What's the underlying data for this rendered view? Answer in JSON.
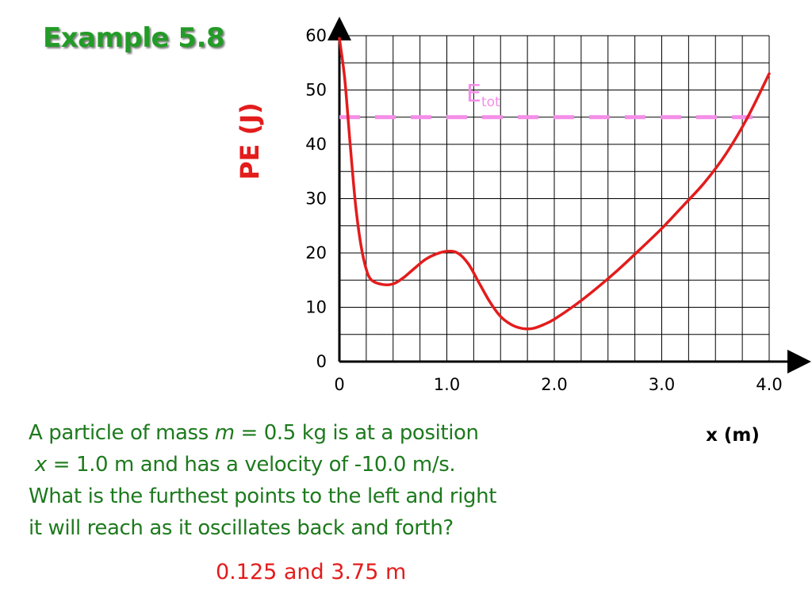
{
  "slide": {
    "title": "Example 5.8",
    "question_lines": [
      "A particle of mass m = 0.5 kg is at a position",
      " x = 1.0 m and has a velocity of -10.0 m/s.",
      "What is the furthest points to the left and right",
      "it will reach as it oscillates back and forth?"
    ],
    "answer": "0.125 and 3.75 m"
  },
  "chart_data": {
    "type": "line",
    "title": "",
    "xlabel": "x (m)",
    "ylabel": "PE (J)",
    "xlim": [
      0,
      4.0
    ],
    "ylim": [
      0,
      60
    ],
    "x_ticks": [
      "0",
      "1.0",
      "2.0",
      "3.0",
      "4.0"
    ],
    "y_ticks": [
      "0",
      "10",
      "20",
      "30",
      "40",
      "50",
      "60"
    ],
    "grid": true,
    "series": [
      {
        "color": "#e31c1c",
        "x": [
          0.0,
          0.05,
          0.1,
          0.15,
          0.2,
          0.25,
          0.3,
          0.4,
          0.5,
          0.6,
          0.7,
          0.8,
          0.9,
          1.0,
          1.1,
          1.2,
          1.3,
          1.4,
          1.5,
          1.6,
          1.7,
          1.8,
          1.9,
          2.0,
          2.2,
          2.4,
          2.6,
          2.8,
          3.0,
          3.2,
          3.4,
          3.6,
          3.8,
          4.0
        ],
        "y": [
          59.5,
          52,
          40,
          29,
          21.5,
          17,
          15,
          14.2,
          14.3,
          15.5,
          17.2,
          18.8,
          19.8,
          20.3,
          20,
          18,
          14.5,
          11,
          8.3,
          6.8,
          6.1,
          6.1,
          6.8,
          7.8,
          10.5,
          13.6,
          17,
          20.7,
          24.5,
          28.7,
          33,
          38.3,
          45,
          53
        ]
      }
    ],
    "reference_line": {
      "label": "E",
      "label_subscript": "tot",
      "y": 45,
      "style": "dashed",
      "color": "#f48de8"
    }
  }
}
